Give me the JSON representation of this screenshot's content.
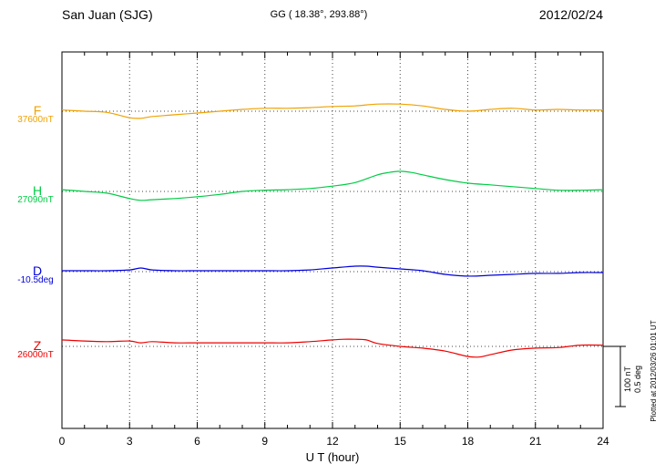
{
  "header": {
    "station": "San Juan (SJG)",
    "coords": "GG ( 18.38°, 293.88°)",
    "date": "2012/02/24"
  },
  "axis": {
    "xlabel": "U T (hour)"
  },
  "scalebar": {
    "nt_label": "100 nT",
    "deg_label": "0.5 deg"
  },
  "footer": {
    "plotted_at": "Plotted at 2012/03/26 01:01 UT"
  },
  "chart_data": {
    "type": "line",
    "title": "San Juan (SJG) magnetogram",
    "date": "2012/02/24",
    "xlabel": "U T (hour)",
    "xlim": [
      0,
      24
    ],
    "x_ticks": [
      0,
      3,
      6,
      9,
      12,
      15,
      18,
      21,
      24
    ],
    "grid_hours": [
      3,
      6,
      9,
      12,
      15,
      18,
      21
    ],
    "scale_reference": {
      "nT": 100,
      "deg": 0.5
    },
    "series": [
      {
        "name": "F",
        "baseline_label": "37600nT",
        "baseline": 37600,
        "unit": "nT",
        "color": "#f0a202",
        "points": [
          [
            0,
            2
          ],
          [
            1,
            0
          ],
          [
            2,
            -2
          ],
          [
            3,
            -11
          ],
          [
            3.5,
            -12
          ],
          [
            4,
            -9
          ],
          [
            5,
            -6
          ],
          [
            6,
            -3
          ],
          [
            7,
            0
          ],
          [
            8,
            3
          ],
          [
            9,
            5
          ],
          [
            10,
            5
          ],
          [
            11,
            6
          ],
          [
            12,
            8
          ],
          [
            13,
            9
          ],
          [
            14,
            12
          ],
          [
            15,
            12
          ],
          [
            16,
            9
          ],
          [
            17,
            3
          ],
          [
            18,
            0
          ],
          [
            19,
            3
          ],
          [
            20,
            5
          ],
          [
            21,
            2
          ],
          [
            22,
            3
          ],
          [
            23,
            2
          ],
          [
            24,
            2
          ]
        ]
      },
      {
        "name": "H",
        "baseline_label": "27090nT",
        "baseline": 27090,
        "unit": "nT",
        "color": "#00cc44",
        "points": [
          [
            0,
            3
          ],
          [
            1,
            0
          ],
          [
            2,
            -3
          ],
          [
            3,
            -12
          ],
          [
            3.5,
            -15
          ],
          [
            4,
            -14
          ],
          [
            5,
            -12
          ],
          [
            6,
            -9
          ],
          [
            7,
            -5
          ],
          [
            8,
            0
          ],
          [
            9,
            2
          ],
          [
            10,
            3
          ],
          [
            11,
            5
          ],
          [
            12,
            9
          ],
          [
            13,
            15
          ],
          [
            14,
            28
          ],
          [
            14.5,
            32
          ],
          [
            15,
            34
          ],
          [
            15.5,
            32
          ],
          [
            16,
            28
          ],
          [
            17,
            20
          ],
          [
            18,
            14
          ],
          [
            19,
            11
          ],
          [
            20,
            8
          ],
          [
            21,
            5
          ],
          [
            22,
            2
          ],
          [
            23,
            2
          ],
          [
            24,
            3
          ]
        ]
      },
      {
        "name": "D",
        "baseline_label": "-10.5deg",
        "baseline": -10.5,
        "unit": "deg",
        "color": "#0000dd",
        "points": [
          [
            0,
            0.008
          ],
          [
            1,
            0.008
          ],
          [
            2,
            0.008
          ],
          [
            3,
            0.015
          ],
          [
            3.5,
            0.031
          ],
          [
            4,
            0.015
          ],
          [
            5,
            0.008
          ],
          [
            6,
            0.008
          ],
          [
            7,
            0.008
          ],
          [
            8,
            0.008
          ],
          [
            9,
            0.008
          ],
          [
            10,
            0.008
          ],
          [
            11,
            0.015
          ],
          [
            12,
            0.031
          ],
          [
            13,
            0.046
          ],
          [
            13.5,
            0.046
          ],
          [
            14,
            0.038
          ],
          [
            15,
            0.023
          ],
          [
            16,
            0.008
          ],
          [
            17,
            -0.023
          ],
          [
            18,
            -0.038
          ],
          [
            19,
            -0.031
          ],
          [
            20,
            -0.023
          ],
          [
            21,
            -0.015
          ],
          [
            22,
            -0.015
          ],
          [
            23,
            -0.008
          ],
          [
            24,
            -0.008
          ]
        ]
      },
      {
        "name": "Z",
        "baseline_label": "26000nT",
        "baseline": 26000,
        "unit": "nT",
        "color": "#ee0000",
        "points": [
          [
            0,
            11
          ],
          [
            1,
            9
          ],
          [
            2,
            8
          ],
          [
            3,
            9
          ],
          [
            3.5,
            6
          ],
          [
            4,
            8
          ],
          [
            5,
            6
          ],
          [
            6,
            6
          ],
          [
            7,
            6
          ],
          [
            8,
            6
          ],
          [
            9,
            6
          ],
          [
            10,
            6
          ],
          [
            11,
            8
          ],
          [
            12,
            11
          ],
          [
            12.5,
            12
          ],
          [
            13,
            12
          ],
          [
            13.5,
            11
          ],
          [
            14,
            5
          ],
          [
            15,
            0
          ],
          [
            16,
            -3
          ],
          [
            17,
            -8
          ],
          [
            18,
            -17
          ],
          [
            18.5,
            -18
          ],
          [
            19,
            -14
          ],
          [
            20,
            -6
          ],
          [
            21,
            -3
          ],
          [
            22,
            -2
          ],
          [
            23,
            2
          ],
          [
            24,
            2
          ]
        ]
      }
    ]
  }
}
